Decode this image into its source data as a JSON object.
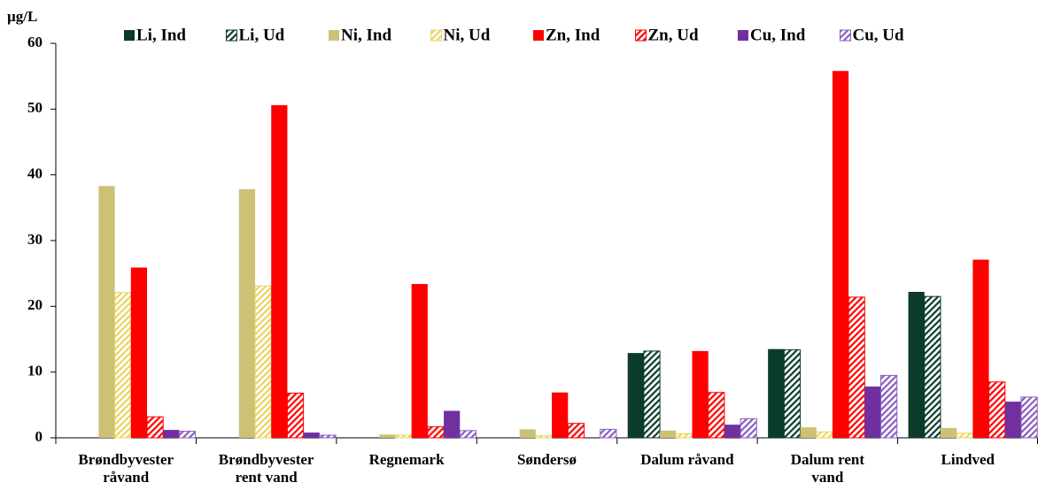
{
  "chart_data": {
    "type": "bar",
    "y_label": "µg/L",
    "categories": [
      [
        "Brøndbyvester",
        "råvand"
      ],
      [
        "Brøndbyvester",
        "rent vand"
      ],
      [
        "Regnemark"
      ],
      [
        "Søndersø"
      ],
      [
        "Dalum råvand"
      ],
      [
        "Dalum rent",
        "vand"
      ],
      [
        "Lindved"
      ]
    ],
    "series": [
      {
        "name": "Li, Ind",
        "color": "#0b3b2c",
        "hatched": false,
        "values": [
          0,
          0,
          0,
          0,
          12.9,
          13.5,
          22.2
        ]
      },
      {
        "name": "Li, Ud",
        "color": "#0b3b2c",
        "hatched": true,
        "values": [
          0,
          0,
          0,
          0,
          13.2,
          13.4,
          21.5
        ]
      },
      {
        "name": "Ni, Ind",
        "color": "#ccc175",
        "hatched": false,
        "values": [
          38.3,
          37.8,
          0.5,
          1.3,
          1.1,
          1.6,
          1.5
        ]
      },
      {
        "name": "Ni, Ud",
        "color": "#e8d560",
        "hatched": true,
        "values": [
          22.1,
          23.1,
          0.4,
          0.3,
          0.6,
          0.9,
          0.7
        ]
      },
      {
        "name": "Zn, Ind",
        "color": "#ff0000",
        "hatched": false,
        "values": [
          25.9,
          50.6,
          23.4,
          6.9,
          13.2,
          55.8,
          27.1
        ]
      },
      {
        "name": "Zn, Ud",
        "color": "#ff0000",
        "hatched": true,
        "values": [
          3.2,
          6.8,
          1.7,
          2.2,
          6.9,
          21.4,
          8.5
        ]
      },
      {
        "name": "Cu, Ind",
        "color": "#7030a0",
        "hatched": false,
        "values": [
          1.2,
          0.8,
          4.1,
          0,
          2.0,
          7.8,
          5.5
        ]
      },
      {
        "name": "Cu, Ud",
        "color": "#8a5cc0",
        "hatched": true,
        "values": [
          1.0,
          0.4,
          1.1,
          1.3,
          2.9,
          9.5,
          6.2
        ]
      }
    ],
    "ylim": [
      0,
      60
    ],
    "yticks": [
      0,
      10,
      20,
      30,
      40,
      50,
      60
    ],
    "grid": false,
    "legend": "top"
  }
}
